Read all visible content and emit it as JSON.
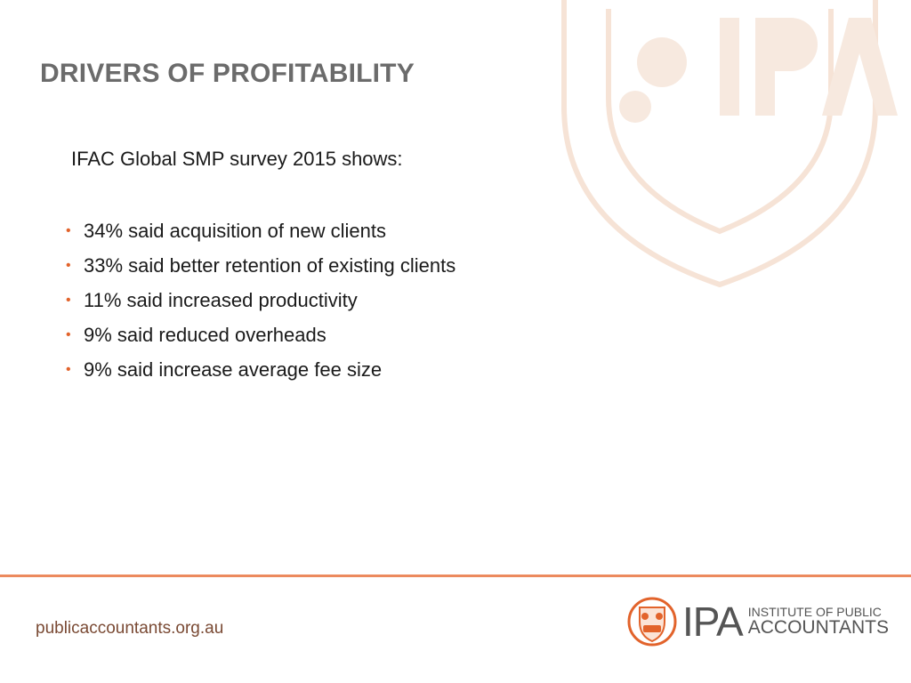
{
  "slide": {
    "title": "DRIVERS OF PROFITABILITY",
    "intro": "IFAC Global SMP survey 2015 shows:",
    "bullets": [
      "34% said acquisition of new clients",
      "33% said better retention of existing clients",
      "11% said increased productivity",
      "9% said reduced overheads",
      "9% said increase average fee size"
    ]
  },
  "footer": {
    "url": "publicaccountants.org.au",
    "logo_mark": "IPA",
    "logo_line1": "INSTITUTE OF PUBLIC",
    "logo_line2": "ACCOUNTANTS"
  },
  "colors": {
    "accent": "#e2632b",
    "title": "#6b6b6b",
    "rule": "#ec8a5e"
  }
}
